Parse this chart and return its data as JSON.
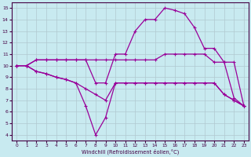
{
  "xlabel": "Windchill (Refroidissement éolien,°C)",
  "bg_color": "#c8eaf0",
  "grid_color": "#b0c8d0",
  "line_color": "#990099",
  "x_ticks": [
    0,
    1,
    2,
    3,
    4,
    5,
    6,
    7,
    8,
    9,
    10,
    11,
    12,
    13,
    14,
    15,
    16,
    17,
    18,
    19,
    20,
    21,
    22,
    23
  ],
  "y_ticks": [
    4,
    5,
    6,
    7,
    8,
    9,
    10,
    11,
    12,
    13,
    14,
    15
  ],
  "xlim": [
    -0.5,
    23.5
  ],
  "ylim": [
    3.5,
    15.5
  ],
  "line_arch_x": [
    0,
    1,
    2,
    3,
    4,
    5,
    6,
    7,
    8,
    9,
    10,
    11,
    12,
    13,
    14,
    15,
    16,
    17,
    18,
    19,
    20,
    21,
    22,
    23
  ],
  "line_arch_y": [
    10.0,
    10.0,
    10.5,
    10.5,
    10.5,
    10.5,
    10.5,
    10.5,
    8.5,
    8.5,
    11.0,
    11.0,
    13.0,
    14.0,
    14.0,
    15.0,
    14.8,
    14.5,
    13.3,
    11.5,
    11.5,
    10.3,
    7.2,
    6.5
  ],
  "line_flat_x": [
    0,
    1,
    2,
    3,
    4,
    5,
    6,
    7,
    8,
    9,
    10,
    11,
    12,
    13,
    14,
    15,
    16,
    17,
    18,
    19,
    20,
    21,
    22,
    23
  ],
  "line_flat_y": [
    10.0,
    10.0,
    10.5,
    10.5,
    10.5,
    10.5,
    10.5,
    10.5,
    10.5,
    10.5,
    10.5,
    10.5,
    10.5,
    10.5,
    10.5,
    11.0,
    11.0,
    11.0,
    11.0,
    11.0,
    10.3,
    10.3,
    10.3,
    6.5
  ],
  "line_decline_x": [
    0,
    1,
    2,
    3,
    4,
    5,
    6,
    7,
    8,
    9,
    10,
    11,
    12,
    13,
    14,
    15,
    16,
    17,
    18,
    19,
    20,
    21,
    22,
    23
  ],
  "line_decline_y": [
    10.0,
    10.0,
    9.5,
    9.3,
    9.0,
    8.8,
    8.5,
    8.0,
    7.5,
    7.0,
    8.5,
    8.5,
    8.5,
    8.5,
    8.5,
    8.5,
    8.5,
    8.5,
    8.5,
    8.5,
    8.5,
    7.5,
    7.0,
    6.5
  ],
  "line_dip_x": [
    0,
    1,
    2,
    3,
    4,
    5,
    6,
    7,
    8,
    9,
    10,
    11,
    12,
    13,
    14,
    15,
    16,
    17,
    18,
    19,
    20,
    21,
    22,
    23
  ],
  "line_dip_y": [
    10.0,
    10.0,
    9.5,
    9.3,
    9.0,
    8.8,
    8.5,
    6.5,
    4.0,
    5.5,
    8.5,
    8.5,
    8.5,
    8.5,
    8.5,
    8.5,
    8.5,
    8.5,
    8.5,
    8.5,
    8.5,
    7.5,
    7.0,
    6.5
  ]
}
